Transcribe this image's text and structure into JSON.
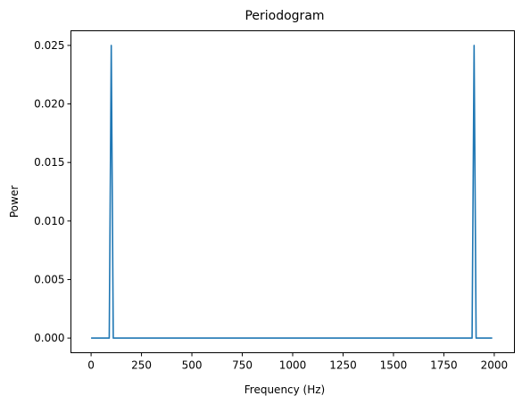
{
  "chart_data": {
    "type": "line",
    "title": "Periodogram",
    "xlabel": "Frequency (Hz)",
    "ylabel": "Power",
    "xlim": [
      -100,
      2100
    ],
    "ylim": [
      -0.00125,
      0.02625
    ],
    "x_ticks": [
      0,
      250,
      500,
      750,
      1000,
      1250,
      1500,
      1750,
      2000
    ],
    "x_tick_labels": [
      "0",
      "250",
      "500",
      "750",
      "1000",
      "1250",
      "1500",
      "1750",
      "2000"
    ],
    "y_ticks": [
      0,
      0.005,
      0.01,
      0.015,
      0.02,
      0.025
    ],
    "y_tick_labels": [
      "0.000",
      "0.005",
      "0.010",
      "0.015",
      "0.020",
      "0.025"
    ],
    "grid": false,
    "legend": "none",
    "series": [
      {
        "color": "#1f77b4",
        "x": [
          0,
          90,
          100,
          110,
          1890,
          1900,
          1910,
          1990
        ],
        "y": [
          0,
          0,
          0.025,
          0,
          0,
          0.025,
          0,
          0
        ]
      }
    ]
  }
}
